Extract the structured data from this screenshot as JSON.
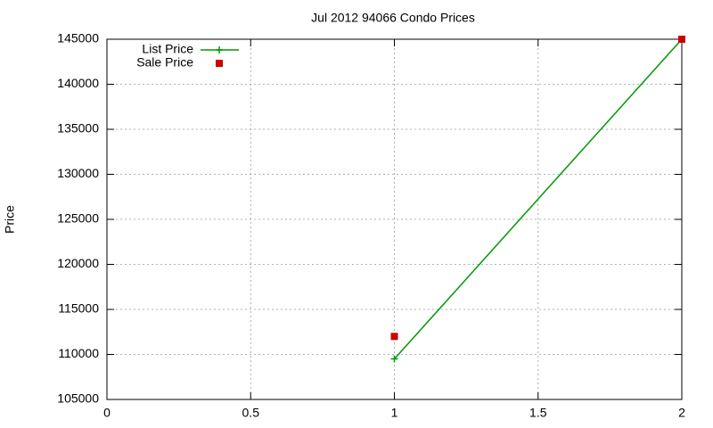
{
  "chart_data": {
    "type": "line",
    "title": "Jul 2012 94066 Condo Prices",
    "y_label": "Price",
    "series": [
      {
        "name": "List Price",
        "color": "#009900",
        "x": [
          1,
          2
        ],
        "values": [
          109500,
          145000
        ],
        "line": true,
        "marker": "plus"
      },
      {
        "name": "Sale Price",
        "color": "#cc0000",
        "x": [
          1,
          2
        ],
        "values": [
          112000,
          145000
        ],
        "line": false,
        "marker": "square"
      }
    ],
    "xlim": [
      0,
      2
    ],
    "xticks": [
      0,
      0.5,
      1,
      1.5,
      2
    ],
    "ylim": [
      105000,
      145000
    ],
    "yticks": [
      105000,
      110000,
      115000,
      120000,
      125000,
      130000,
      135000,
      140000,
      145000
    ],
    "grid": true,
    "legend": "top-left"
  }
}
